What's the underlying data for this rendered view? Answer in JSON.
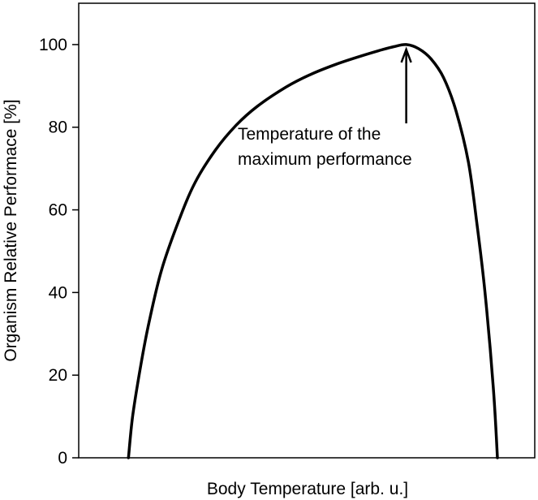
{
  "chart_data": {
    "type": "line",
    "title": "",
    "xlabel": "Body Temperature [arb. u.]",
    "ylabel": "Organism Relative Performace [%]",
    "ylim": [
      0,
      110
    ],
    "xlim": [
      0,
      110
    ],
    "y_ticks": [
      "0",
      "20",
      "40",
      "60",
      "80",
      "100"
    ],
    "x_ticks": [],
    "grid": false,
    "legend": "none",
    "series": [
      {
        "x": [
          12,
          13,
          15,
          17,
          20,
          24,
          28,
          33,
          38,
          43,
          50,
          56,
          62,
          68,
          73,
          76,
          79,
          82,
          85,
          88,
          91,
          94,
          96,
          98,
          100,
          101
        ],
        "values": [
          0,
          10,
          22.5,
          33,
          45.5,
          57,
          66.5,
          74.5,
          80.5,
          85,
          89.7,
          92.8,
          95.2,
          97.2,
          98.7,
          99.5,
          100,
          99,
          96.5,
          92,
          84,
          71.5,
          57,
          40,
          17,
          0
        ]
      }
    ],
    "annotations": [
      {
        "line1": "Temperature of the",
        "line2": "maximum performance",
        "x": 79,
        "y": 100
      }
    ],
    "colors": {
      "line": "#000000",
      "background": "#ffffff"
    }
  }
}
